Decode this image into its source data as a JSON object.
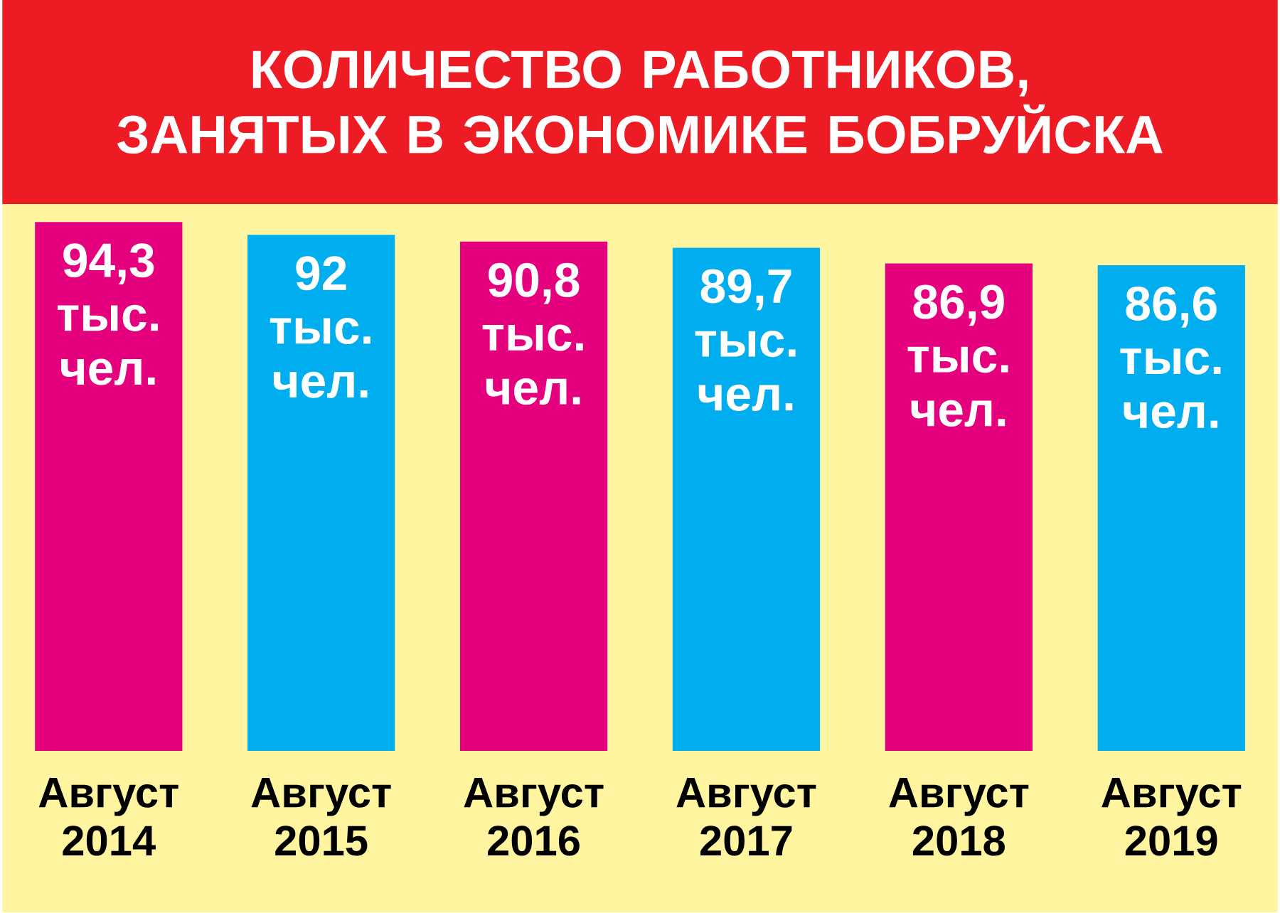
{
  "chart_data": {
    "type": "bar",
    "title": "КОЛИЧЕСТВО РАБОТНИКОВ, ЗАНЯТЫХ В ЭКОНОМИКЕ БОБРУЙСКА",
    "categories": [
      "Август 2014",
      "Август 2015",
      "Август 2016",
      "Август 2017",
      "Август 2018",
      "Август 2019"
    ],
    "values": [
      94.3,
      92,
      90.8,
      89.7,
      86.9,
      86.6
    ],
    "colors": [
      "#e5007d",
      "#00aeef",
      "#e5007d",
      "#00aeef",
      "#e5007d",
      "#00aeef"
    ],
    "value_labels": [
      "94,3 тыс. чел.",
      "92 тыс. чел.",
      "90,8 тыс. чел.",
      "89,7 тыс. чел.",
      "86,9 тыс. чел.",
      "86,6 тыс. чел."
    ],
    "tick_labels": "x"
  }
}
